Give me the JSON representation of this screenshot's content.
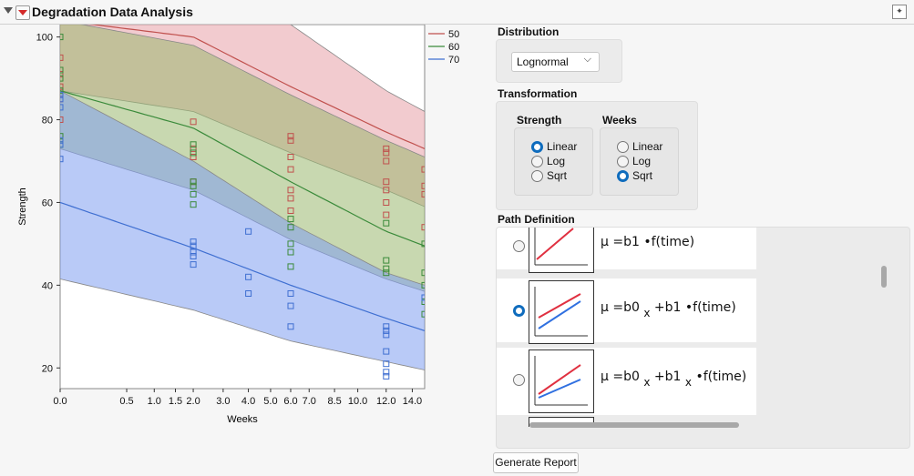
{
  "report": {
    "title": "Degradation Data Analysis"
  },
  "chart_data": {
    "type": "scatter",
    "xlabel": "Weeks",
    "ylabel": "Strength",
    "x_ticks": [
      "0.0",
      "0.5",
      "1.0",
      "1.5",
      "2.0",
      "3.0",
      "4.0",
      "5.0",
      "6.0",
      "7.0",
      "8.5",
      "10.0",
      "12.0",
      "14.0"
    ],
    "x_tick_values": [
      0,
      0.5,
      1,
      1.5,
      2,
      3,
      4,
      5,
      6,
      7,
      8.5,
      10,
      12,
      14
    ],
    "x_scale": "sqrt",
    "xlim": [
      0,
      15
    ],
    "y_ticks": [
      "20",
      "40",
      "60",
      "80",
      "100"
    ],
    "y_tick_values": [
      20,
      40,
      60,
      80,
      100
    ],
    "ylim": [
      15,
      103
    ],
    "legend": [
      {
        "name": "50",
        "color": "#c0504d"
      },
      {
        "name": "60",
        "color": "#3a8a3a"
      },
      {
        "name": "70",
        "color": "#3f6fd1"
      }
    ],
    "series": [
      {
        "name": "50",
        "color": "#c0504d",
        "fill": "#e8a0a8",
        "fit": [
          [
            0,
            104
          ],
          [
            2,
            100
          ],
          [
            6,
            88
          ],
          [
            12,
            77
          ],
          [
            15,
            73
          ]
        ],
        "band_upper": [
          [
            0,
            125
          ],
          [
            2,
            118
          ],
          [
            6,
            103
          ],
          [
            12,
            87
          ],
          [
            15,
            82
          ]
        ],
        "band_lower": [
          [
            0,
            87
          ],
          [
            2,
            82
          ],
          [
            6,
            72
          ],
          [
            12,
            63
          ],
          [
            15,
            59
          ]
        ],
        "points": [
          [
            0,
            95
          ],
          [
            0,
            91
          ],
          [
            0,
            88
          ],
          [
            0,
            85
          ],
          [
            0,
            80
          ],
          [
            2,
            79.5
          ],
          [
            2,
            73
          ],
          [
            2,
            71
          ],
          [
            2,
            65
          ],
          [
            6,
            76
          ],
          [
            6,
            75
          ],
          [
            6,
            71
          ],
          [
            6,
            68
          ],
          [
            6,
            63
          ],
          [
            6,
            61
          ],
          [
            6,
            58
          ],
          [
            12,
            73
          ],
          [
            12,
            72
          ],
          [
            12,
            70
          ],
          [
            12,
            65
          ],
          [
            12,
            63
          ],
          [
            12,
            60
          ],
          [
            12,
            57
          ],
          [
            15,
            68
          ],
          [
            15,
            64
          ],
          [
            15,
            62
          ],
          [
            15,
            54
          ]
        ]
      },
      {
        "name": "60",
        "color": "#3a8a3a",
        "fill": "#9ab870",
        "fit": [
          [
            0,
            87
          ],
          [
            2,
            78
          ],
          [
            6,
            65
          ],
          [
            12,
            53
          ],
          [
            15,
            49.5
          ]
        ],
        "band_upper": [
          [
            0,
            104
          ],
          [
            2,
            98
          ],
          [
            6,
            86
          ],
          [
            12,
            75
          ],
          [
            15,
            71
          ]
        ],
        "band_lower": [
          [
            0,
            73
          ],
          [
            2,
            63
          ],
          [
            6,
            51
          ],
          [
            12,
            41.5
          ],
          [
            15,
            38.5
          ]
        ],
        "points": [
          [
            0,
            100
          ],
          [
            0,
            92
          ],
          [
            0,
            90
          ],
          [
            0,
            87
          ],
          [
            0,
            76
          ],
          [
            0,
            74
          ],
          [
            2,
            74
          ],
          [
            2,
            72
          ],
          [
            2,
            65
          ],
          [
            2,
            64
          ],
          [
            2,
            62
          ],
          [
            2,
            59.5
          ],
          [
            6,
            56
          ],
          [
            6,
            54
          ],
          [
            6,
            50
          ],
          [
            6,
            48
          ],
          [
            6,
            44.5
          ],
          [
            12,
            55
          ],
          [
            12,
            46
          ],
          [
            12,
            44
          ],
          [
            12,
            43
          ],
          [
            15,
            50
          ],
          [
            15,
            43
          ],
          [
            15,
            40
          ],
          [
            15,
            36
          ],
          [
            15,
            33
          ]
        ]
      },
      {
        "name": "70",
        "color": "#3f6fd1",
        "fill": "#7f9ef0",
        "fit": [
          [
            0,
            60
          ],
          [
            2,
            49
          ],
          [
            6,
            40
          ],
          [
            12,
            32
          ],
          [
            15,
            29
          ]
        ],
        "band_upper": [
          [
            0,
            87
          ],
          [
            2,
            70
          ],
          [
            6,
            55
          ],
          [
            12,
            43
          ],
          [
            15,
            40
          ]
        ],
        "band_lower": [
          [
            0,
            41.5
          ],
          [
            2,
            34
          ],
          [
            6,
            26.5
          ],
          [
            12,
            21.5
          ],
          [
            15,
            19.5
          ]
        ],
        "points": [
          [
            0,
            86
          ],
          [
            0,
            85
          ],
          [
            0,
            83
          ],
          [
            0,
            75
          ],
          [
            0,
            74
          ],
          [
            0,
            70.5
          ],
          [
            2,
            50.5
          ],
          [
            2,
            49.5
          ],
          [
            2,
            48
          ],
          [
            2,
            47
          ],
          [
            2,
            45
          ],
          [
            4,
            53
          ],
          [
            4,
            42
          ],
          [
            4,
            38
          ],
          [
            6,
            38
          ],
          [
            6,
            35
          ],
          [
            6,
            30
          ],
          [
            12,
            30
          ],
          [
            12,
            29
          ],
          [
            12,
            28
          ],
          [
            12,
            24
          ],
          [
            12,
            21
          ],
          [
            12,
            19
          ],
          [
            12,
            18
          ],
          [
            15,
            37
          ]
        ]
      }
    ]
  },
  "panel": {
    "distribution_label": "Distribution",
    "distribution_value": "Lognormal",
    "distribution_chevron": "chevron-down-icon",
    "transformation_label": "Transformation",
    "strength_label": "Strength",
    "weeks_label": "Weeks",
    "options": [
      "Linear",
      "Log",
      "Sqrt"
    ],
    "strength_selected": "Linear",
    "weeks_selected": "Sqrt",
    "path_label": "Path Definition",
    "paths": [
      {
        "mu": "μ",
        "eq": "=",
        "a": "b1",
        "dot": "•",
        "ft": "f(time)",
        "selected": false
      },
      {
        "mu": "μ",
        "eq": "=",
        "a": "b0",
        "asub": "x",
        "plus": "+",
        "b": "b1",
        "dot": "•",
        "ft": "f(time)",
        "selected": true
      },
      {
        "mu": "μ",
        "eq": "=",
        "a": "b0",
        "asub": "x",
        "plus": "+",
        "b": "b1",
        "bsub": "x",
        "dot": "•",
        "ft": "f(time)",
        "selected": false
      }
    ],
    "generate_label": "Generate Report"
  }
}
